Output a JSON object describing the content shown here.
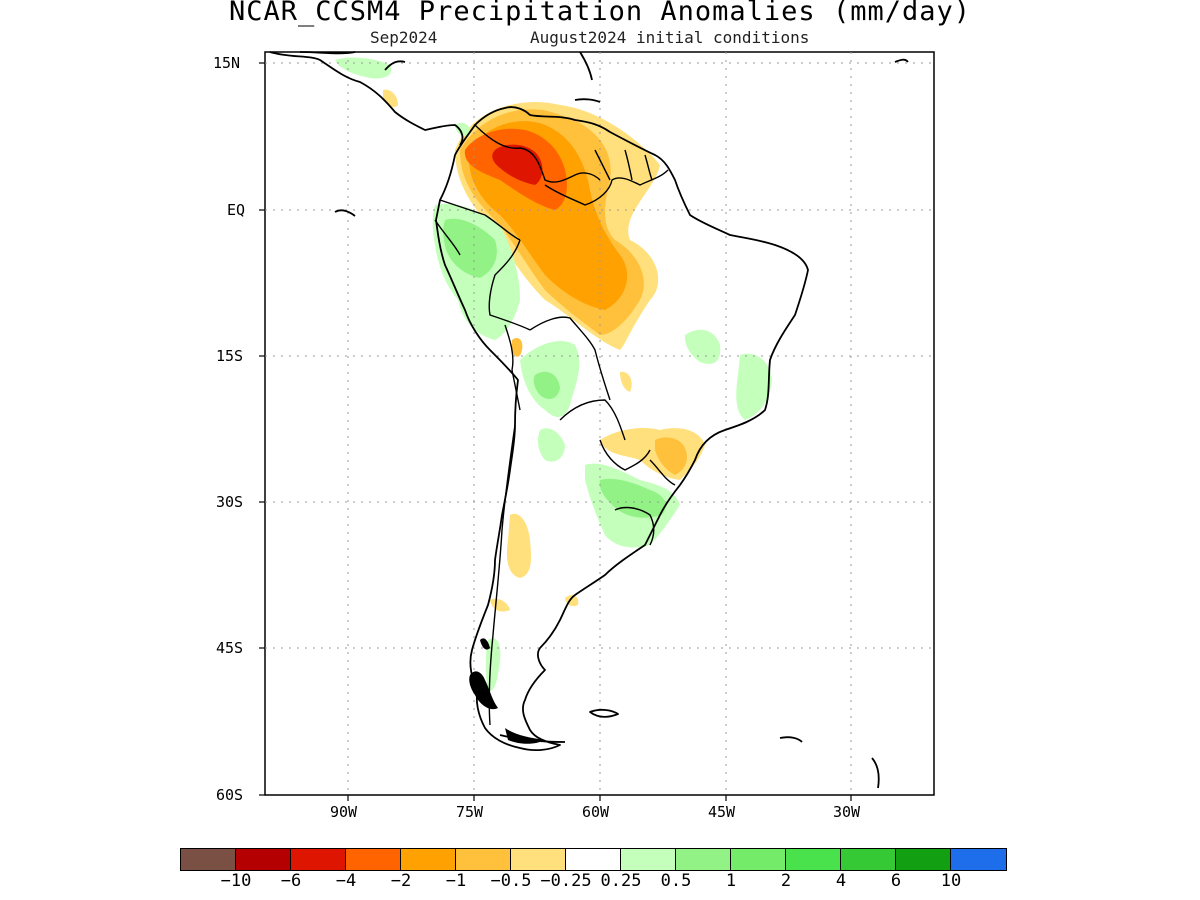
{
  "title": "NCAR_CCSM4 Precipitation Anomalies (mm/day)",
  "subtitle_left": "Sep2024",
  "subtitle_right": "August2024 initial conditions",
  "axes": {
    "lat_labels": [
      "15N",
      "EQ",
      "15S",
      "30S",
      "45S",
      "60S"
    ],
    "lon_labels": [
      "90W",
      "75W",
      "60W",
      "45W",
      "30W"
    ]
  },
  "colorbar": {
    "colors": [
      "#7a4f44",
      "#b40000",
      "#de1500",
      "#ff6400",
      "#ffa100",
      "#ffc03c",
      "#ffe07c",
      "#ffffff",
      "#c4ffbc",
      "#92f286",
      "#74ec6a",
      "#4ae24c",
      "#36c936",
      "#12a012",
      "#1e6eeb"
    ],
    "labels": [
      "−10",
      "−6",
      "−4",
      "−2",
      "−1",
      "−0.5",
      "−0.25",
      "0.25",
      "0.5",
      "1",
      "2",
      "4",
      "6",
      "10"
    ]
  }
}
